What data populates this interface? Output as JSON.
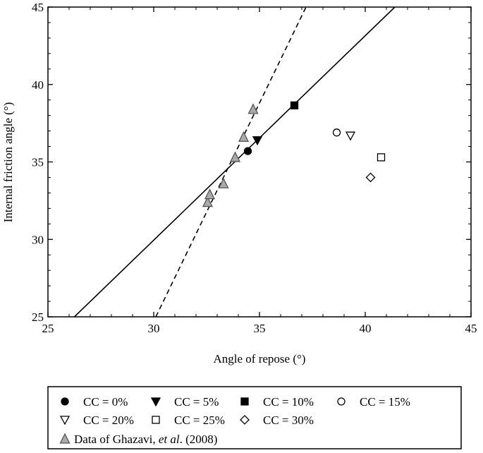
{
  "chart_data": {
    "type": "scatter",
    "xlabel": "Angle of repose (°)",
    "ylabel": "Internal friction angle (°)",
    "xlim": [
      25,
      45
    ],
    "ylim": [
      25,
      45
    ],
    "xticks": [
      25,
      30,
      35,
      40,
      45
    ],
    "yticks": [
      25,
      30,
      35,
      40,
      45
    ],
    "grid": false,
    "legend_position": "bottom",
    "series": [
      {
        "name": "CC = 0%",
        "marker": "circle",
        "filled": true,
        "x": [
          34.45
        ],
        "y": [
          35.7
        ]
      },
      {
        "name": "CC = 5%",
        "marker": "triangle-down",
        "filled": true,
        "x": [
          34.9
        ],
        "y": [
          36.4
        ]
      },
      {
        "name": "CC = 10%",
        "marker": "square",
        "filled": true,
        "x": [
          36.65
        ],
        "y": [
          38.65
        ]
      },
      {
        "name": "CC = 15%",
        "marker": "circle",
        "filled": false,
        "x": [
          38.65
        ],
        "y": [
          36.9
        ]
      },
      {
        "name": "CC = 20%",
        "marker": "triangle-down",
        "filled": false,
        "x": [
          39.3
        ],
        "y": [
          36.7
        ]
      },
      {
        "name": "CC = 25%",
        "marker": "square",
        "filled": false,
        "x": [
          40.75
        ],
        "y": [
          35.3
        ]
      },
      {
        "name": "CC = 30%",
        "marker": "diamond",
        "filled": false,
        "x": [
          40.25
        ],
        "y": [
          34.0
        ]
      },
      {
        "name": "Data of Ghazavi, et al. (2008)",
        "marker": "triangle-up",
        "filled": true,
        "color": "#aaaaaa",
        "x": [
          32.55,
          32.65,
          33.3,
          33.85,
          34.25,
          34.7
        ],
        "y": [
          32.4,
          32.9,
          33.6,
          35.3,
          36.6,
          38.4
        ]
      }
    ],
    "fit_lines": [
      {
        "style": "solid",
        "x": [
          26.25,
          41.4
        ],
        "y": [
          25,
          45
        ]
      },
      {
        "style": "dashed",
        "x": [
          30.1,
          37.2
        ],
        "y": [
          25,
          45
        ]
      }
    ]
  },
  "legend": {
    "rows": [
      [
        {
          "label": "CC = 0%",
          "marker": "circle",
          "filled": true
        },
        {
          "label": "CC = 5%",
          "marker": "triangle-down",
          "filled": true
        },
        {
          "label": "CC = 10%",
          "marker": "square",
          "filled": true
        },
        {
          "label": "CC = 15%",
          "marker": "circle",
          "filled": false
        }
      ],
      [
        {
          "label": "CC = 20%",
          "marker": "triangle-down",
          "filled": false
        },
        {
          "label": "CC = 25%",
          "marker": "square",
          "filled": false
        },
        {
          "label": "CC = 30%",
          "marker": "diamond",
          "filled": false
        }
      ]
    ],
    "ghazavi": {
      "prefix": "Data of Ghazavi, ",
      "italic": "et al",
      "suffix": ". (2008)"
    }
  }
}
